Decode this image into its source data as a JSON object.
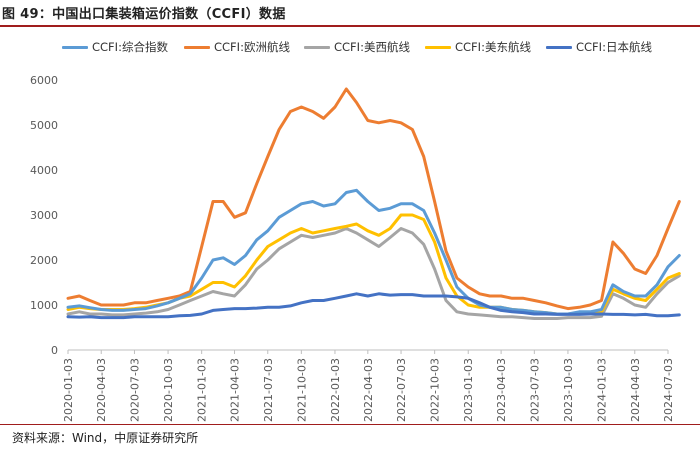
{
  "header": {
    "title": "图 49：中国出口集装箱运价指数（CCFI）数据"
  },
  "footer": {
    "source": "资料来源：Wind，中原证券研究所"
  },
  "colors": {
    "composite": "#5b9bd5",
    "europe": "#ed7d31",
    "us_west": "#a5a5a5",
    "us_east": "#ffc000",
    "japan": "#4472c4",
    "title_rule": "#a01d1d"
  },
  "chart_data": {
    "type": "line",
    "title": "",
    "xlabel": "",
    "ylabel": "",
    "ylim": [
      0,
      6000
    ],
    "yticks": [
      0,
      1000,
      2000,
      3000,
      4000,
      5000,
      6000
    ],
    "grid": false,
    "legend_position": "top",
    "x_tick_labels": [
      "2020-01-03",
      "2020-04-03",
      "2020-07-03",
      "2020-10-03",
      "2021-01-03",
      "2021-04-03",
      "2021-07-03",
      "2021-10-03",
      "2022-01-03",
      "2022-04-03",
      "2022-07-03",
      "2022-10-03",
      "2023-01-03",
      "2023-04-03",
      "2023-07-03",
      "2023-10-03",
      "2024-01-03",
      "2024-04-03",
      "2024-07-03"
    ],
    "x": [
      "2020-01-03",
      "2020-02-03",
      "2020-03-03",
      "2020-04-03",
      "2020-05-03",
      "2020-06-03",
      "2020-07-03",
      "2020-08-03",
      "2020-09-03",
      "2020-10-03",
      "2020-11-03",
      "2020-12-03",
      "2021-01-03",
      "2021-02-03",
      "2021-03-03",
      "2021-04-03",
      "2021-05-03",
      "2021-06-03",
      "2021-07-03",
      "2021-08-03",
      "2021-09-03",
      "2021-10-03",
      "2021-11-03",
      "2021-12-03",
      "2022-01-03",
      "2022-02-03",
      "2022-03-03",
      "2022-04-03",
      "2022-05-03",
      "2022-06-03",
      "2022-07-03",
      "2022-08-03",
      "2022-09-03",
      "2022-10-03",
      "2022-11-03",
      "2022-12-03",
      "2023-01-03",
      "2023-02-03",
      "2023-03-03",
      "2023-04-03",
      "2023-05-03",
      "2023-06-03",
      "2023-07-03",
      "2023-08-03",
      "2023-09-03",
      "2023-10-03",
      "2023-11-03",
      "2023-12-03",
      "2024-01-03",
      "2024-02-03",
      "2024-03-03",
      "2024-04-03",
      "2024-05-03",
      "2024-06-03",
      "2024-07-03",
      "2024-08-03"
    ],
    "series": [
      {
        "name": "CCFI:综合指数",
        "color_key": "composite",
        "values": [
          950,
          980,
          940,
          900,
          880,
          880,
          900,
          920,
          980,
          1050,
          1150,
          1250,
          1600,
          2000,
          2050,
          1900,
          2100,
          2450,
          2650,
          2950,
          3100,
          3250,
          3300,
          3200,
          3250,
          3500,
          3550,
          3300,
          3100,
          3150,
          3250,
          3250,
          3100,
          2600,
          2000,
          1400,
          1150,
          1000,
          950,
          950,
          900,
          880,
          850,
          830,
          800,
          800,
          850,
          850,
          900,
          1450,
          1300,
          1200,
          1200,
          1450,
          1850,
          2100
        ]
      },
      {
        "name": "CCFI:欧洲航线",
        "color_key": "europe",
        "values": [
          1150,
          1200,
          1100,
          1000,
          1000,
          1000,
          1050,
          1050,
          1100,
          1150,
          1200,
          1300,
          2300,
          3300,
          3300,
          2950,
          3050,
          3700,
          4300,
          4900,
          5300,
          5400,
          5300,
          5150,
          5400,
          5800,
          5500,
          5100,
          5050,
          5100,
          5050,
          4900,
          4300,
          3300,
          2200,
          1600,
          1400,
          1250,
          1200,
          1200,
          1150,
          1150,
          1100,
          1050,
          980,
          920,
          950,
          1000,
          1100,
          2400,
          2150,
          1800,
          1700,
          2100,
          2700,
          3300
        ]
      },
      {
        "name": "CCFI:美西航线",
        "color_key": "us_west",
        "values": [
          800,
          850,
          800,
          800,
          780,
          780,
          800,
          820,
          850,
          900,
          1000,
          1100,
          1200,
          1300,
          1250,
          1200,
          1450,
          1800,
          2000,
          2250,
          2400,
          2550,
          2500,
          2550,
          2600,
          2700,
          2600,
          2450,
          2300,
          2500,
          2700,
          2600,
          2350,
          1800,
          1100,
          850,
          800,
          780,
          760,
          740,
          740,
          720,
          700,
          700,
          700,
          720,
          720,
          720,
          750,
          1250,
          1150,
          1000,
          950,
          1250,
          1500,
          1650
        ]
      },
      {
        "name": "CCFI:美东航线",
        "color_key": "us_east",
        "values": [
          900,
          950,
          920,
          900,
          900,
          900,
          920,
          950,
          1000,
          1050,
          1150,
          1200,
          1350,
          1500,
          1500,
          1400,
          1650,
          2000,
          2300,
          2450,
          2600,
          2700,
          2600,
          2650,
          2700,
          2750,
          2800,
          2650,
          2550,
          2700,
          3000,
          3000,
          2900,
          2400,
          1600,
          1200,
          1000,
          950,
          950,
          950,
          900,
          880,
          850,
          830,
          800,
          800,
          820,
          820,
          850,
          1350,
          1250,
          1150,
          1100,
          1350,
          1600,
          1700
        ]
      },
      {
        "name": "CCFI:日本航线",
        "color_key": "japan",
        "values": [
          740,
          730,
          740,
          720,
          720,
          720,
          740,
          740,
          740,
          740,
          760,
          770,
          800,
          880,
          900,
          920,
          920,
          930,
          950,
          950,
          980,
          1050,
          1100,
          1100,
          1150,
          1200,
          1250,
          1200,
          1250,
          1220,
          1230,
          1230,
          1200,
          1200,
          1200,
          1180,
          1150,
          1050,
          950,
          880,
          850,
          830,
          800,
          800,
          790,
          790,
          790,
          800,
          800,
          790,
          790,
          780,
          790,
          760,
          760,
          780
        ]
      }
    ]
  }
}
